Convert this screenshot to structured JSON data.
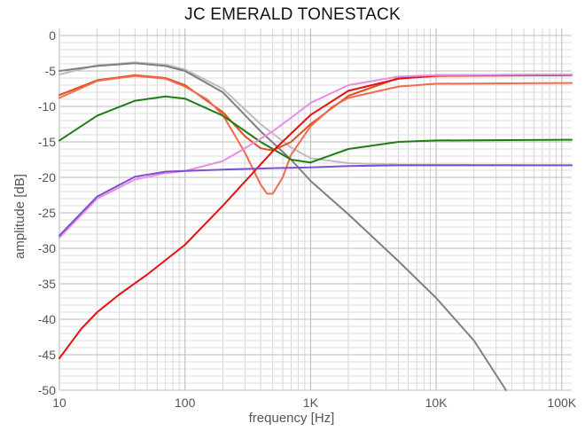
{
  "chart_data": {
    "type": "line",
    "title": "JC EMERALD TONESTACK",
    "xlabel": "frequency [Hz]",
    "ylabel": "amplitude [dB]",
    "xscale": "log",
    "xlim": [
      10,
      120000
    ],
    "ylim": [
      -50,
      1
    ],
    "grid": true,
    "legend": "none",
    "x_ticks": [
      {
        "value": 10,
        "label": "10"
      },
      {
        "value": 100,
        "label": "100"
      },
      {
        "value": 1000,
        "label": "1K"
      },
      {
        "value": 10000,
        "label": "10K"
      },
      {
        "value": 100000,
        "label": "100K"
      }
    ],
    "y_ticks": [
      {
        "value": 0,
        "label": "0"
      },
      {
        "value": -5,
        "label": "-5"
      },
      {
        "value": -10,
        "label": "-10"
      },
      {
        "value": -15,
        "label": "-15"
      },
      {
        "value": -20,
        "label": "-20"
      },
      {
        "value": -25,
        "label": "-25"
      },
      {
        "value": -30,
        "label": "-30"
      },
      {
        "value": -35,
        "label": "-35"
      },
      {
        "value": -40,
        "label": "-40"
      },
      {
        "value": -45,
        "label": "-45"
      },
      {
        "value": -50,
        "label": "-50"
      }
    ],
    "series": [
      {
        "color": "#bdbdbd",
        "x": [
          10,
          20,
          40,
          70,
          100,
          200,
          400,
          700,
          1000,
          2000,
          5000,
          120000
        ],
        "y": [
          -5.5,
          -4.2,
          -3.8,
          -4.1,
          -4.8,
          -7.5,
          -12.5,
          -15.8,
          -17.3,
          -18,
          -18.2,
          -18.3
        ]
      },
      {
        "color": "#808080",
        "x": [
          10,
          20,
          40,
          70,
          100,
          200,
          400,
          700,
          1000,
          2000,
          5000,
          10000,
          20000,
          36000
        ],
        "y": [
          -5,
          -4.3,
          -3.9,
          -4.3,
          -5,
          -8,
          -13.5,
          -17.5,
          -20.5,
          -25.2,
          -31.8,
          -37,
          -43,
          -50
        ]
      },
      {
        "color": "#e0501e",
        "x": [
          10,
          20,
          40,
          70,
          100,
          200,
          300,
          400,
          500,
          700,
          1000,
          2000,
          5000,
          10000,
          120000
        ],
        "y": [
          -8.4,
          -6.3,
          -5.6,
          -6,
          -7,
          -10.8,
          -14.2,
          -15.9,
          -16.2,
          -15,
          -12.5,
          -8.5,
          -6,
          -5.6,
          -5.5
        ]
      },
      {
        "color": "#f26a50",
        "x": [
          10,
          20,
          40,
          70,
          100,
          150,
          200,
          300,
          400,
          450,
          500,
          600,
          700,
          1000,
          1500,
          2000,
          5000,
          10000,
          120000
        ],
        "y": [
          -8.8,
          -6.4,
          -5.7,
          -6.1,
          -7.2,
          -9,
          -11.2,
          -16.5,
          -21,
          -22.3,
          -22.3,
          -20,
          -16.8,
          -12.8,
          -10,
          -8.8,
          -7.2,
          -6.8,
          -6.7
        ]
      },
      {
        "color": "#1e7d14",
        "x": [
          10,
          20,
          40,
          70,
          100,
          200,
          400,
          700,
          1000,
          2000,
          5000,
          10000,
          120000
        ],
        "y": [
          -14.8,
          -11.3,
          -9.2,
          -8.6,
          -8.9,
          -11.3,
          -15,
          -17.5,
          -17.9,
          -16,
          -15,
          -14.8,
          -14.7
        ]
      },
      {
        "color": "#e31212",
        "x": [
          10,
          15,
          20,
          30,
          50,
          100,
          200,
          500,
          1000,
          2000,
          5000,
          10000,
          120000
        ],
        "y": [
          -45.5,
          -41.3,
          -39,
          -36.5,
          -33.7,
          -29.5,
          -24,
          -16.3,
          -11.2,
          -7.8,
          -6.1,
          -5.7,
          -5.6
        ]
      },
      {
        "color": "#e98de0",
        "x": [
          10,
          20,
          40,
          70,
          100,
          200,
          300,
          500,
          700,
          1000,
          2000,
          5000,
          10000,
          120000
        ],
        "y": [
          -28.5,
          -23,
          -20.3,
          -19.4,
          -19.1,
          -17.7,
          -15.9,
          -13.5,
          -11.6,
          -9.5,
          -7,
          -5.8,
          -5.6,
          -5.5
        ]
      },
      {
        "color": "#7b4fd0",
        "x": [
          10,
          20,
          40,
          70,
          100,
          200,
          500,
          1000,
          2000,
          5000,
          120000
        ],
        "y": [
          -28.2,
          -22.7,
          -19.9,
          -19.2,
          -19.1,
          -18.9,
          -18.7,
          -18.6,
          -18.4,
          -18.3,
          -18.3
        ]
      }
    ]
  }
}
